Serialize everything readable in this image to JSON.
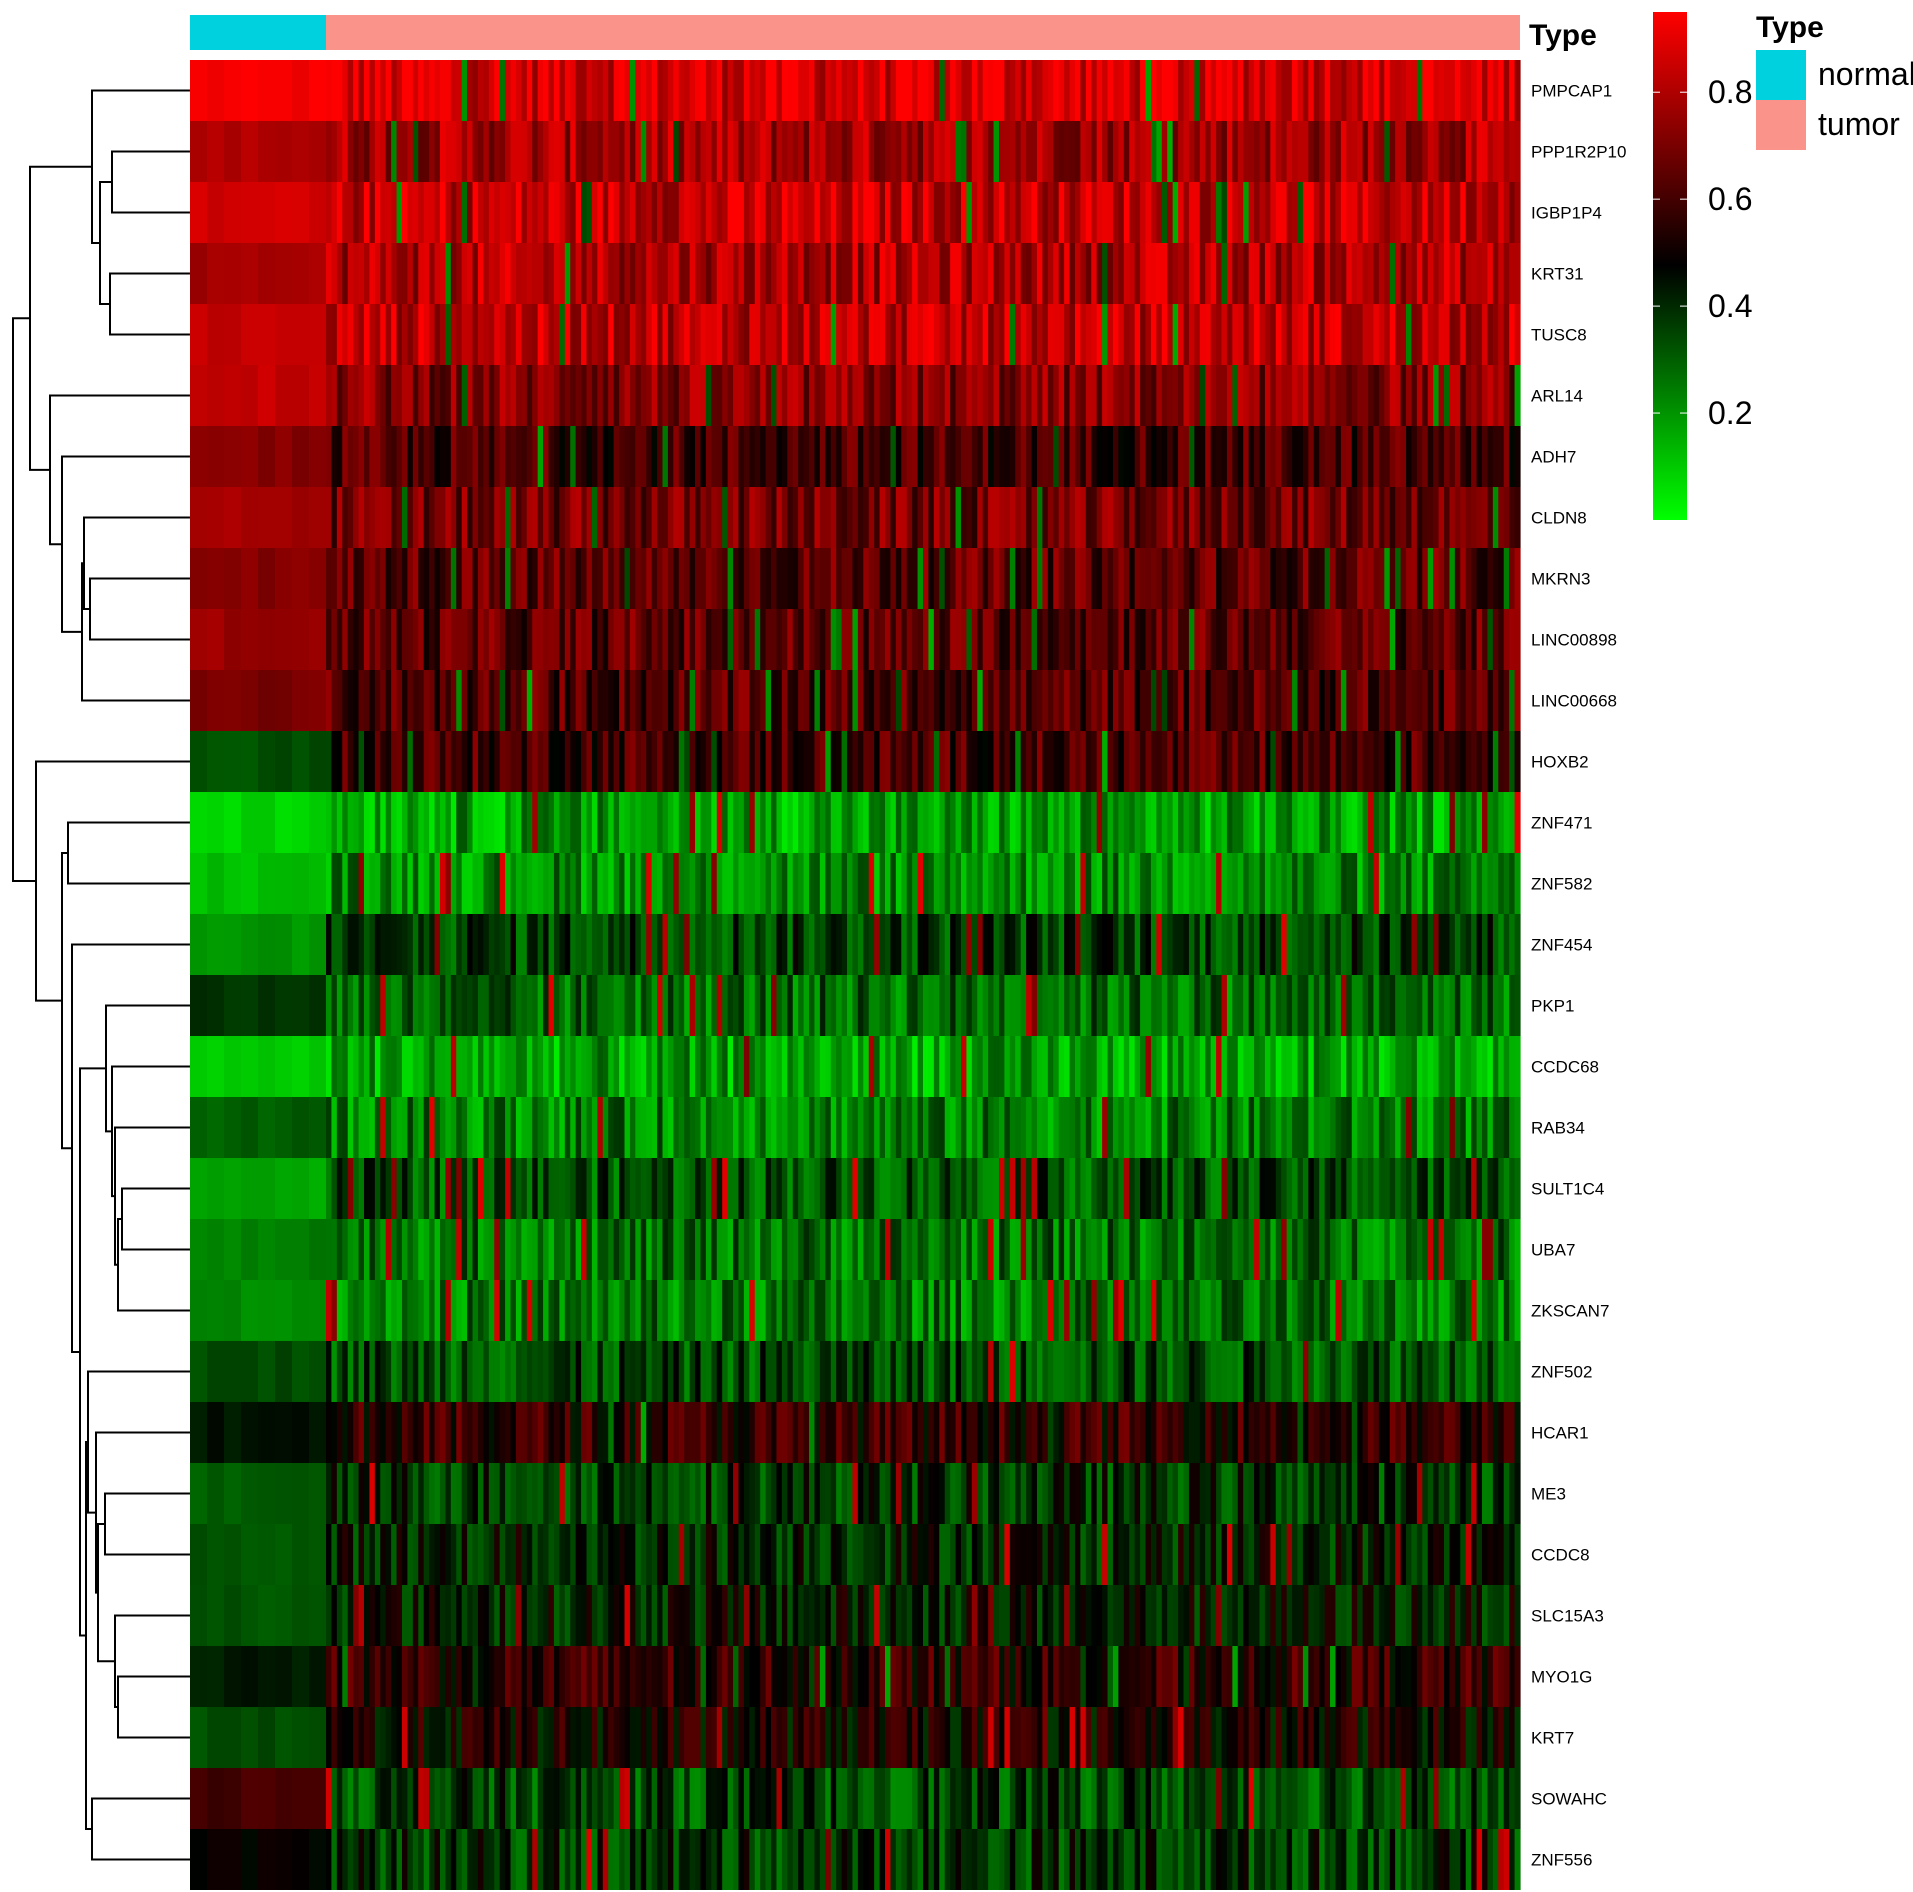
{
  "chart_data": {
    "type": "heatmap",
    "title": "",
    "column_annotation": {
      "title": "Type",
      "groups": [
        {
          "name": "normal",
          "color": "#00D1DE",
          "share": 0.102
        },
        {
          "name": "tumor",
          "color": "#FA938A",
          "share": 0.898
        }
      ]
    },
    "colorscale": {
      "colors": [
        "#00FF00",
        "#000000",
        "#FF0000"
      ],
      "range": [
        0.0,
        0.95
      ],
      "ticks": [
        "0.2",
        "0.4",
        "0.6",
        "0.8"
      ],
      "tick_values": [
        0.2,
        0.4,
        0.6,
        0.8
      ]
    },
    "rows": [
      {
        "gene": "PMPCAP1",
        "normal": 0.93,
        "tumor": 0.88
      },
      {
        "gene": "PPP1R2P10",
        "normal": 0.8,
        "tumor": 0.78
      },
      {
        "gene": "IGBP1P4",
        "normal": 0.86,
        "tumor": 0.84
      },
      {
        "gene": "KRT31",
        "normal": 0.78,
        "tumor": 0.8
      },
      {
        "gene": "TUSC8",
        "normal": 0.84,
        "tumor": 0.83
      },
      {
        "gene": "ARL14",
        "normal": 0.84,
        "tumor": 0.72
      },
      {
        "gene": "ADH7",
        "normal": 0.72,
        "tumor": 0.6
      },
      {
        "gene": "CLDN8",
        "normal": 0.78,
        "tumor": 0.68
      },
      {
        "gene": "MKRN3",
        "normal": 0.72,
        "tumor": 0.64
      },
      {
        "gene": "LINC00898",
        "normal": 0.76,
        "tumor": 0.64
      },
      {
        "gene": "LINC00668",
        "normal": 0.7,
        "tumor": 0.62
      },
      {
        "gene": "HOXB2",
        "normal": 0.33,
        "tumor": 0.6
      },
      {
        "gene": "ZNF471",
        "normal": 0.08,
        "tumor": 0.18
      },
      {
        "gene": "ZNF582",
        "normal": 0.12,
        "tumor": 0.22
      },
      {
        "gene": "ZNF454",
        "normal": 0.2,
        "tumor": 0.36
      },
      {
        "gene": "PKP1",
        "normal": 0.38,
        "tumor": 0.28
      },
      {
        "gene": "CCDC68",
        "normal": 0.1,
        "tumor": 0.17
      },
      {
        "gene": "RAB34",
        "normal": 0.3,
        "tumor": 0.24
      },
      {
        "gene": "SULT1C4",
        "normal": 0.16,
        "tumor": 0.33
      },
      {
        "gene": "UBA7",
        "normal": 0.24,
        "tumor": 0.27
      },
      {
        "gene": "ZKSCAN7",
        "normal": 0.22,
        "tumor": 0.25
      },
      {
        "gene": "ZNF502",
        "normal": 0.34,
        "tumor": 0.34
      },
      {
        "gene": "HCAR1",
        "normal": 0.44,
        "tumor": 0.56
      },
      {
        "gene": "ME3",
        "normal": 0.3,
        "tumor": 0.38
      },
      {
        "gene": "CCDC8",
        "normal": 0.32,
        "tumor": 0.42
      },
      {
        "gene": "SLC15A3",
        "normal": 0.32,
        "tumor": 0.43
      },
      {
        "gene": "MYO1G",
        "normal": 0.43,
        "tumor": 0.56
      },
      {
        "gene": "KRT7",
        "normal": 0.33,
        "tumor": 0.5
      },
      {
        "gene": "SOWAHC",
        "normal": 0.6,
        "tumor": 0.35
      },
      {
        "gene": "ZNF556",
        "normal": 0.48,
        "tumor": 0.38
      }
    ]
  }
}
